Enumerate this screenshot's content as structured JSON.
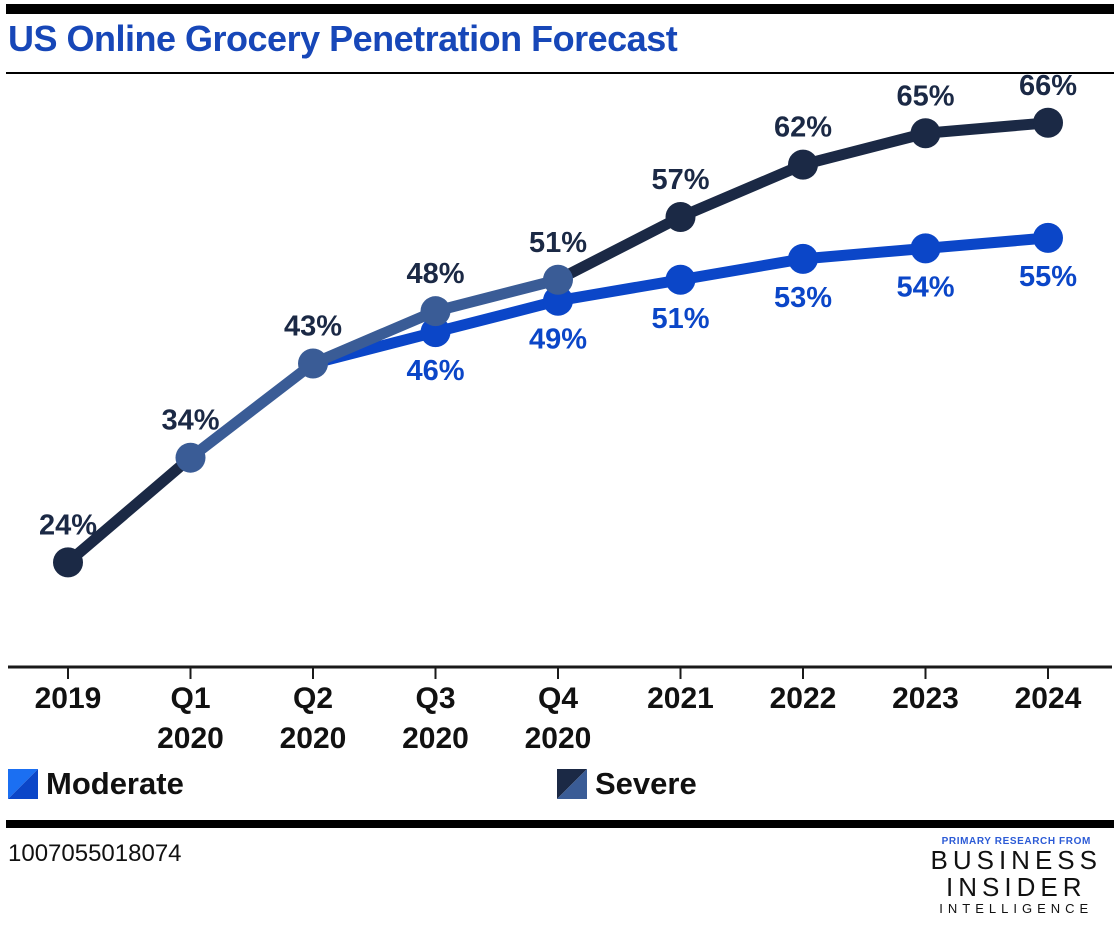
{
  "title": "US Online Grocery Penetration Forecast",
  "footnote_id": "1007055018074",
  "brand": {
    "prefix": "PRIMARY RESEARCH FROM",
    "line1": "BUSINESS",
    "line2": "INSIDER",
    "line3": "INTELLIGENCE"
  },
  "colors": {
    "title": "#1747b8",
    "moderate": "#0b46c8",
    "moderate_light": "#1b6ff2",
    "severe": "#1b2945",
    "shared": "#3a5c96",
    "axis": "#1a1a1a"
  },
  "chart_data": {
    "type": "line",
    "title": "US Online Grocery Penetration Forecast",
    "categories": [
      "2019",
      "Q1 2020",
      "Q2 2020",
      "Q3 2020",
      "Q4 2020",
      "2021",
      "2022",
      "2023",
      "2024"
    ],
    "category_lines": [
      [
        "2019"
      ],
      [
        "Q1",
        "2020"
      ],
      [
        "Q2",
        "2020"
      ],
      [
        "Q3",
        "2020"
      ],
      [
        "Q4",
        "2020"
      ],
      [
        "2021"
      ],
      [
        "2022"
      ],
      [
        "2023"
      ],
      [
        "2024"
      ]
    ],
    "y_unit": "%",
    "ylim": [
      14,
      72
    ],
    "series": [
      {
        "name": "Moderate",
        "values": [
          24,
          34,
          43,
          46,
          49,
          51,
          53,
          54,
          55
        ]
      },
      {
        "name": "Severe",
        "values": [
          24,
          34,
          43,
          48,
          51,
          57,
          62,
          65,
          66
        ]
      }
    ],
    "legend": [
      {
        "name": "Moderate"
      },
      {
        "name": "Severe"
      }
    ],
    "legend_position": "bottom-left"
  }
}
